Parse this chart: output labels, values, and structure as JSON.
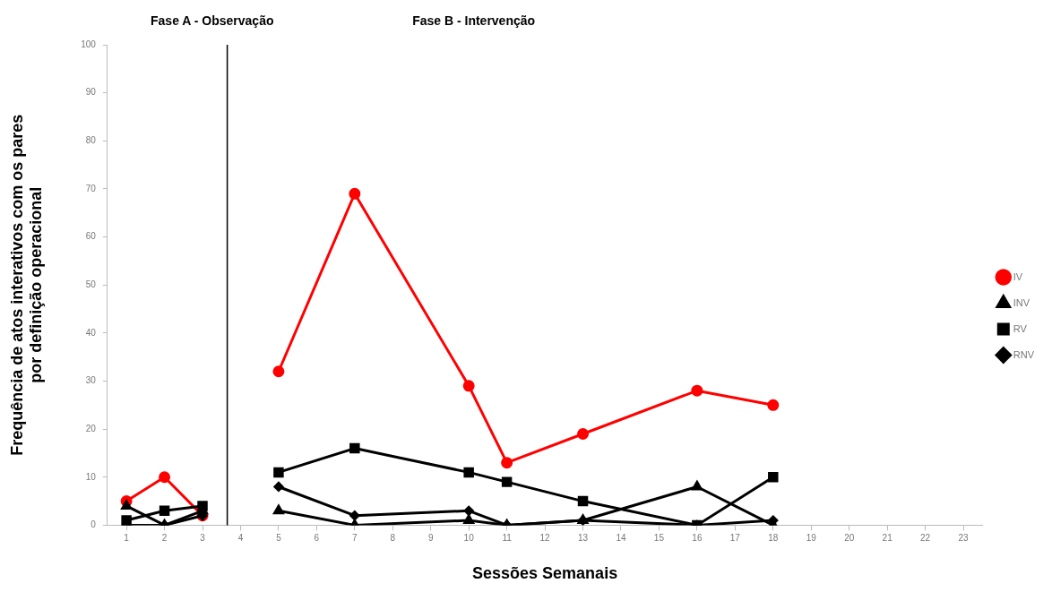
{
  "chart_data": {
    "type": "line",
    "xlabel": "Sessões Semanais",
    "ylabel": "Frequência de atos interativos com os pares\npor definição operacional",
    "annotations": [
      "Fase A - Observação",
      "Fase B - Intervenção"
    ],
    "xlim": [
      0.5,
      23.5
    ],
    "xticks": [
      1,
      2,
      3,
      4,
      5,
      6,
      7,
      8,
      9,
      10,
      11,
      12,
      13,
      14,
      15,
      16,
      17,
      18,
      19,
      20,
      21,
      22,
      23
    ],
    "ylim": [
      0,
      100
    ],
    "yticks": [
      0,
      10,
      20,
      30,
      40,
      50,
      60,
      70,
      80,
      90,
      100
    ],
    "grid": false,
    "legend": "right",
    "line_style": "solid",
    "ref_lines": [
      {
        "axis": "x",
        "value": 3.65,
        "color": "#000000"
      }
    ],
    "series": [
      {
        "name": "IV",
        "color": "#ff0000",
        "marker": "circle",
        "x": [
          1,
          2,
          3,
          4,
          5,
          7,
          10,
          11,
          13,
          16,
          18
        ],
        "values": [
          5,
          10,
          2,
          null,
          32,
          69,
          29,
          13,
          19,
          28,
          25
        ]
      },
      {
        "name": "INV",
        "color": "#000000",
        "marker": "triangle",
        "x": [
          1,
          2,
          3,
          4,
          5,
          7,
          10,
          11,
          13,
          16,
          18
        ],
        "values": [
          4,
          0,
          3,
          null,
          3,
          0,
          1,
          0,
          1,
          8,
          0
        ]
      },
      {
        "name": "RV",
        "color": "#000000",
        "marker": "square",
        "x": [
          1,
          2,
          3,
          4,
          5,
          7,
          10,
          11,
          13,
          16,
          18
        ],
        "values": [
          1,
          3,
          4,
          null,
          11,
          16,
          11,
          9,
          5,
          0,
          10
        ]
      },
      {
        "name": "RNV",
        "color": "#000000",
        "marker": "diamond",
        "x": [
          1,
          2,
          3,
          4,
          5,
          7,
          10,
          11,
          13,
          16,
          18
        ],
        "values": [
          0,
          0,
          2,
          null,
          8,
          2,
          3,
          0,
          1,
          0,
          1
        ]
      }
    ]
  }
}
